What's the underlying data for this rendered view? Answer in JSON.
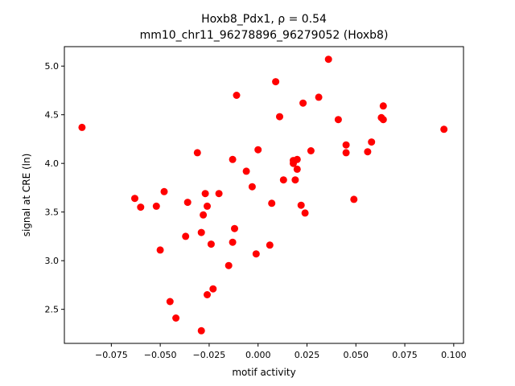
{
  "chart_data": {
    "type": "scatter",
    "title_line1": "Hoxb8_Pdx1, ρ = 0.54",
    "title_line2": "mm10_chr11_96278896_96279052 (Hoxb8)",
    "xlabel": "motif activity",
    "ylabel": "signal at CRE (ln)",
    "xlim": [
      -0.099,
      0.105
    ],
    "ylim": [
      2.15,
      5.2
    ],
    "grid": false,
    "point_color": "#ff0000",
    "xticks": [
      {
        "value": -0.075,
        "label": "−0.075"
      },
      {
        "value": -0.05,
        "label": "−0.050"
      },
      {
        "value": -0.025,
        "label": "−0.025"
      },
      {
        "value": 0.0,
        "label": "0.000"
      },
      {
        "value": 0.025,
        "label": "0.025"
      },
      {
        "value": 0.05,
        "label": "0.050"
      },
      {
        "value": 0.075,
        "label": "0.075"
      },
      {
        "value": 0.1,
        "label": "0.100"
      }
    ],
    "yticks": [
      {
        "value": 2.5,
        "label": "2.5"
      },
      {
        "value": 3.0,
        "label": "3.0"
      },
      {
        "value": 3.5,
        "label": "3.5"
      },
      {
        "value": 4.0,
        "label": "4.0"
      },
      {
        "value": 4.5,
        "label": "4.5"
      },
      {
        "value": 5.0,
        "label": "5.0"
      }
    ],
    "points": [
      {
        "x": -0.09,
        "y": 4.37
      },
      {
        "x": -0.063,
        "y": 3.64
      },
      {
        "x": -0.06,
        "y": 3.55
      },
      {
        "x": -0.052,
        "y": 3.56
      },
      {
        "x": -0.05,
        "y": 3.11
      },
      {
        "x": -0.048,
        "y": 3.71
      },
      {
        "x": -0.045,
        "y": 2.58
      },
      {
        "x": -0.042,
        "y": 2.41
      },
      {
        "x": -0.037,
        "y": 3.25
      },
      {
        "x": -0.036,
        "y": 3.6
      },
      {
        "x": -0.031,
        "y": 4.11
      },
      {
        "x": -0.029,
        "y": 3.29
      },
      {
        "x": -0.029,
        "y": 2.28
      },
      {
        "x": -0.028,
        "y": 3.47
      },
      {
        "x": -0.027,
        "y": 3.69
      },
      {
        "x": -0.026,
        "y": 3.56
      },
      {
        "x": -0.026,
        "y": 2.65
      },
      {
        "x": -0.024,
        "y": 3.17
      },
      {
        "x": -0.023,
        "y": 2.71
      },
      {
        "x": -0.02,
        "y": 3.69
      },
      {
        "x": -0.015,
        "y": 2.95
      },
      {
        "x": -0.013,
        "y": 4.04
      },
      {
        "x": -0.013,
        "y": 3.19
      },
      {
        "x": -0.012,
        "y": 3.33
      },
      {
        "x": -0.011,
        "y": 4.7
      },
      {
        "x": -0.006,
        "y": 3.92
      },
      {
        "x": -0.003,
        "y": 3.76
      },
      {
        "x": -0.001,
        "y": 3.07
      },
      {
        "x": 0.0,
        "y": 4.14
      },
      {
        "x": 0.006,
        "y": 3.16
      },
      {
        "x": 0.007,
        "y": 3.59
      },
      {
        "x": 0.009,
        "y": 4.84
      },
      {
        "x": 0.011,
        "y": 4.48
      },
      {
        "x": 0.013,
        "y": 3.83
      },
      {
        "x": 0.018,
        "y": 4.0
      },
      {
        "x": 0.018,
        "y": 4.03
      },
      {
        "x": 0.019,
        "y": 3.83
      },
      {
        "x": 0.02,
        "y": 4.04
      },
      {
        "x": 0.02,
        "y": 3.94
      },
      {
        "x": 0.022,
        "y": 3.57
      },
      {
        "x": 0.023,
        "y": 4.62
      },
      {
        "x": 0.024,
        "y": 3.49
      },
      {
        "x": 0.027,
        "y": 4.13
      },
      {
        "x": 0.031,
        "y": 4.68
      },
      {
        "x": 0.036,
        "y": 5.07
      },
      {
        "x": 0.041,
        "y": 4.45
      },
      {
        "x": 0.045,
        "y": 4.19
      },
      {
        "x": 0.045,
        "y": 4.11
      },
      {
        "x": 0.049,
        "y": 3.63
      },
      {
        "x": 0.056,
        "y": 4.12
      },
      {
        "x": 0.058,
        "y": 4.22
      },
      {
        "x": 0.063,
        "y": 4.47
      },
      {
        "x": 0.064,
        "y": 4.45
      },
      {
        "x": 0.064,
        "y": 4.59
      },
      {
        "x": 0.095,
        "y": 4.35
      }
    ]
  }
}
